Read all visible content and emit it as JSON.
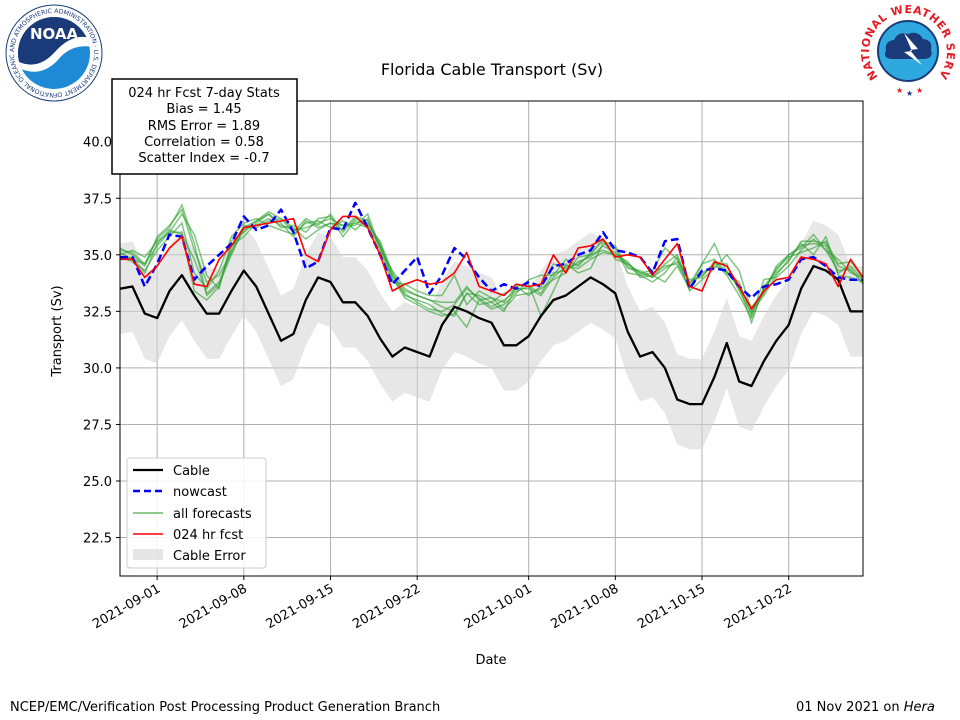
{
  "chart_data": {
    "type": "line",
    "title": "Florida Cable Transport (Sv)",
    "xlabel": "Date",
    "ylabel": "Transport (Sv)",
    "xlim": [
      "2021-08-29",
      "2021-10-28"
    ],
    "ylim": [
      20.8,
      41.8
    ],
    "yticks": [
      22.5,
      25.0,
      27.5,
      30.0,
      32.5,
      35.0,
      37.5,
      40.0
    ],
    "ytick_labels": [
      "22.5",
      "25.0",
      "27.5",
      "30.0",
      "32.5",
      "35.0",
      "37.5",
      "40.0"
    ],
    "xticks": [
      "2021-09-01",
      "2021-09-08",
      "2021-09-15",
      "2021-09-22",
      "2021-10-01",
      "2021-10-08",
      "2021-10-15",
      "2021-10-22"
    ],
    "grid": true,
    "legend_placement": "lower-left",
    "stats_box": {
      "lines": [
        "024 hr Fcst 7-day Stats",
        "Bias = 1.45",
        "RMS Error = 1.89",
        "Correlation = 0.58",
        "Scatter Index = -0.7"
      ]
    },
    "x": [
      "2021-08-29",
      "2021-08-30",
      "2021-08-31",
      "2021-09-01",
      "2021-09-02",
      "2021-09-03",
      "2021-09-04",
      "2021-09-05",
      "2021-09-06",
      "2021-09-07",
      "2021-09-08",
      "2021-09-09",
      "2021-09-10",
      "2021-09-11",
      "2021-09-12",
      "2021-09-13",
      "2021-09-14",
      "2021-09-15",
      "2021-09-16",
      "2021-09-17",
      "2021-09-18",
      "2021-09-19",
      "2021-09-20",
      "2021-09-21",
      "2021-09-22",
      "2021-09-23",
      "2021-09-24",
      "2021-09-25",
      "2021-09-26",
      "2021-09-27",
      "2021-09-28",
      "2021-09-29",
      "2021-09-30",
      "2021-10-01",
      "2021-10-02",
      "2021-10-03",
      "2021-10-04",
      "2021-10-05",
      "2021-10-06",
      "2021-10-07",
      "2021-10-08",
      "2021-10-09",
      "2021-10-10",
      "2021-10-11",
      "2021-10-12",
      "2021-10-13",
      "2021-10-14",
      "2021-10-15",
      "2021-10-16",
      "2021-10-17",
      "2021-10-18",
      "2021-10-19",
      "2021-10-20",
      "2021-10-21",
      "2021-10-22",
      "2021-10-23",
      "2021-10-24",
      "2021-10-25",
      "2021-10-26",
      "2021-10-27",
      "2021-10-28"
    ],
    "series": [
      {
        "name": "Cable",
        "color": "#000000",
        "style": "solid",
        "values": [
          33.5,
          33.6,
          32.4,
          32.2,
          33.4,
          34.1,
          33.2,
          32.4,
          32.4,
          33.4,
          34.3,
          33.6,
          32.4,
          31.2,
          31.5,
          33.0,
          34.0,
          33.8,
          32.9,
          32.9,
          32.3,
          31.3,
          30.5,
          30.9,
          30.7,
          30.5,
          31.9,
          32.7,
          32.5,
          32.2,
          32.0,
          31.0,
          31.0,
          31.4,
          32.3,
          33.0,
          33.2,
          33.6,
          34.0,
          33.7,
          33.3,
          31.6,
          30.5,
          30.7,
          30.0,
          28.6,
          28.4,
          28.4,
          29.6,
          31.1,
          29.4,
          29.2,
          30.3,
          31.2,
          31.9,
          33.5,
          34.5,
          34.3,
          33.9,
          32.5,
          32.5
        ]
      },
      {
        "name": "nowcast",
        "color": "#0000ff",
        "style": "dashed",
        "values": [
          34.9,
          34.9,
          33.6,
          34.6,
          35.9,
          35.8,
          33.9,
          34.5,
          35.0,
          35.5,
          36.7,
          36.1,
          36.3,
          37.0,
          36.0,
          34.4,
          34.7,
          36.2,
          36.1,
          37.3,
          36.2,
          35.0,
          33.7,
          34.3,
          34.9,
          33.3,
          34.1,
          35.3,
          34.8,
          34.0,
          33.4,
          33.7,
          33.5,
          33.8,
          33.6,
          34.5,
          34.6,
          35.0,
          35.2,
          36.0,
          35.2,
          35.1,
          34.9,
          34.2,
          35.6,
          35.7,
          33.5,
          34.3,
          34.4,
          34.3,
          33.6,
          33.1,
          33.6,
          33.7,
          33.9,
          34.8,
          34.9,
          34.5,
          34.0,
          33.9,
          33.9
        ]
      },
      {
        "name": "024 hr fcst",
        "color": "#ff0000",
        "style": "solid",
        "values": [
          34.8,
          34.8,
          34.0,
          34.5,
          35.3,
          35.8,
          33.7,
          33.6,
          34.8,
          35.4,
          36.2,
          36.3,
          36.4,
          36.5,
          36.6,
          35.0,
          34.7,
          36.1,
          36.7,
          36.7,
          36.2,
          35.0,
          33.4,
          33.7,
          33.9,
          33.7,
          33.8,
          34.2,
          35.1,
          33.6,
          33.4,
          33.2,
          33.7,
          33.6,
          33.7,
          35.0,
          34.2,
          35.3,
          35.4,
          35.7,
          34.9,
          35.0,
          34.9,
          34.1,
          34.8,
          35.5,
          33.6,
          33.4,
          34.7,
          34.5,
          33.6,
          32.6,
          33.4,
          33.9,
          34.0,
          34.9,
          34.8,
          34.6,
          33.6,
          34.8,
          34.0
        ]
      }
    ],
    "forecast_series_name": "all forecasts",
    "forecast_color": "#2ca02c",
    "forecast_members": [
      [
        35.2,
        35.1,
        34.6,
        35.7,
        36.2,
        37.2,
        35.5,
        33.2,
        33.7,
        35.0,
        36.2,
        36.5,
        36.8,
        36.4,
        35.8,
        36.5,
        36.2,
        36.4,
        36.1,
        36.7,
        36.5,
        35.4,
        34.0,
        33.1,
        32.8,
        32.5,
        32.3,
        32.4,
        33.3,
        33.2,
        32.9,
        33.3,
        33.5,
        33.5,
        33.2,
        34.0,
        34.5,
        34.4,
        34.8,
        35.1,
        35.0,
        34.7,
        34.0,
        34.1,
        33.8,
        34.5,
        33.5,
        34.6,
        35.5,
        34.2,
        33.6,
        32.0,
        33.6,
        34.3,
        35.0,
        35.3,
        35.9,
        35.2,
        34.8,
        34.2,
        34.0
      ],
      [
        35.0,
        35.2,
        34.9,
        35.6,
        36.0,
        36.0,
        33.4,
        33.0,
        33.6,
        35.4,
        35.8,
        36.4,
        36.8,
        36.2,
        36.3,
        36.0,
        36.6,
        36.7,
        35.8,
        36.5,
        36.3,
        35.6,
        34.2,
        33.2,
        33.0,
        32.8,
        32.4,
        32.3,
        33.3,
        32.8,
        32.9,
        32.5,
        33.6,
        33.7,
        32.3,
        33.4,
        34.6,
        34.2,
        34.4,
        35.5,
        35.3,
        34.2,
        34.1,
        33.8,
        34.2,
        34.9,
        33.4,
        33.9,
        34.4,
        35.0,
        34.3,
        32.5,
        33.2,
        34.1,
        34.8,
        35.5,
        35.0,
        35.8,
        34.1,
        34.0,
        33.8
      ],
      [
        34.9,
        34.7,
        34.3,
        35.2,
        35.8,
        36.4,
        34.2,
        33.5,
        34.3,
        35.8,
        36.4,
        36.6,
        36.3,
        36.1,
        35.9,
        36.4,
        36.5,
        36.2,
        36.5,
        36.1,
        36.6,
        35.2,
        33.8,
        33.7,
        33.4,
        33.2,
        33.2,
        34.1,
        32.8,
        33.4,
        33.1,
        32.9,
        33.6,
        33.2,
        33.6,
        34.6,
        34.4,
        34.6,
        35.0,
        35.7,
        34.8,
        34.6,
        34.2,
        34.3,
        35.3,
        34.8,
        33.9,
        34.0,
        34.7,
        34.1,
        33.2,
        32.2,
        33.4,
        34.4,
        34.9,
        35.1,
        35.3,
        35.6,
        34.6,
        34.7,
        34.0
      ],
      [
        35.1,
        34.8,
        34.6,
        35.4,
        36.0,
        36.8,
        35.9,
        34.1,
        33.5,
        35.6,
        36.0,
        36.5,
        36.9,
        36.6,
        36.2,
        35.7,
        36.1,
        36.4,
        36.3,
        36.3,
        36.8,
        35.3,
        34.3,
        33.5,
        33.2,
        33.0,
        32.9,
        32.9,
        33.6,
        33.0,
        32.6,
        32.8,
        33.3,
        33.9,
        34.1,
        34.1,
        34.8,
        34.5,
        35.1,
        35.6,
        35.4,
        34.4,
        34.3,
        34.0,
        34.6,
        35.0,
        33.7,
        34.6,
        34.8,
        34.2,
        33.8,
        32.3,
        33.9,
        34.0,
        34.5,
        35.2,
        35.7,
        35.2,
        34.3,
        34.4,
        33.7
      ],
      [
        34.8,
        34.9,
        34.2,
        35.5,
        36.1,
        35.9,
        34.8,
        33.3,
        33.8,
        35.2,
        36.3,
        36.2,
        36.5,
        36.6,
        36.0,
        36.6,
        36.3,
        36.8,
        36.0,
        36.6,
        36.4,
        35.5,
        34.1,
        33.4,
        33.2,
        33.0,
        32.7,
        32.5,
        31.8,
        33.0,
        33.1,
        32.6,
        33.2,
        33.3,
        33.5,
        33.9,
        34.2,
        34.9,
        35.0,
        35.2,
        35.0,
        34.5,
        34.1,
        34.2,
        34.5,
        34.6,
        33.6,
        34.2,
        34.5,
        34.3,
        33.5,
        32.7,
        33.3,
        34.5,
        35.0,
        35.4,
        35.5,
        35.4,
        34.2,
        34.5,
        33.9
      ],
      [
        35.3,
        35.0,
        34.5,
        35.8,
        36.3,
        37.0,
        35.2,
        33.8,
        34.1,
        35.1,
        36.1,
        36.3,
        36.6,
        36.3,
        36.1,
        36.2,
        36.4,
        36.6,
        36.3,
        36.4,
        36.2,
        35.4,
        33.9,
        33.3,
        32.9,
        32.6,
        32.5,
        32.8,
        33.5,
        33.1,
        32.7,
        33.0,
        33.4,
        33.6,
        33.3,
        34.2,
        34.3,
        34.7,
        34.9,
        35.4,
        35.1,
        34.6,
        34.2,
        34.0,
        34.4,
        34.7,
        33.8,
        34.1,
        34.6,
        34.6,
        33.4,
        32.4,
        33.5,
        34.2,
        34.7,
        35.6,
        35.6,
        35.5,
        34.5,
        34.3,
        33.8
      ]
    ],
    "error_band": {
      "name": "Cable Error",
      "color": "#d3d3d3",
      "upper": [
        35.5,
        35.6,
        34.4,
        34.2,
        35.4,
        36.1,
        35.2,
        34.4,
        34.4,
        35.4,
        36.3,
        35.6,
        34.4,
        33.2,
        33.5,
        35.0,
        36.0,
        35.8,
        34.9,
        34.9,
        34.3,
        33.3,
        32.5,
        32.9,
        32.7,
        32.5,
        33.9,
        34.7,
        34.5,
        34.2,
        34.0,
        33.0,
        33.0,
        33.4,
        34.3,
        35.0,
        35.2,
        35.6,
        36.0,
        35.7,
        35.3,
        33.6,
        32.5,
        32.7,
        32.0,
        30.6,
        30.4,
        30.4,
        31.6,
        33.1,
        31.4,
        31.2,
        32.3,
        33.2,
        33.9,
        35.5,
        36.5,
        36.3,
        35.9,
        34.5,
        34.5
      ],
      "lower": [
        31.5,
        31.6,
        30.4,
        30.2,
        31.4,
        32.1,
        31.2,
        30.4,
        30.4,
        31.4,
        32.3,
        31.6,
        30.4,
        29.2,
        29.5,
        31.0,
        32.0,
        31.8,
        30.9,
        30.9,
        30.3,
        29.3,
        28.5,
        28.9,
        28.7,
        28.5,
        29.9,
        30.7,
        30.5,
        30.2,
        30.0,
        29.0,
        29.0,
        29.4,
        30.3,
        31.0,
        31.2,
        31.6,
        32.0,
        31.7,
        31.3,
        29.6,
        28.5,
        28.7,
        28.0,
        26.6,
        26.4,
        26.4,
        27.6,
        29.1,
        27.4,
        27.2,
        28.3,
        29.2,
        29.9,
        31.5,
        32.5,
        32.3,
        31.9,
        30.5,
        30.5
      ]
    },
    "legend": [
      "Cable",
      "nowcast",
      "all forecasts",
      "024 hr fcst",
      "Cable Error"
    ]
  },
  "footer": {
    "left": "NCEP/EMC/Verification Post Processing Product Generation Branch",
    "right_prefix": "01 Nov 2021 on ",
    "right_host": "Hera"
  },
  "logos": {
    "noaa": "NOAA",
    "noaa_ring": "NATIONAL OCEANIC AND ATMOSPHERIC ADMINISTRATION · U.S. DEPARTMENT OF COMMERCE ·",
    "nws_ring": "NATIONAL WEATHER SERVICE"
  }
}
